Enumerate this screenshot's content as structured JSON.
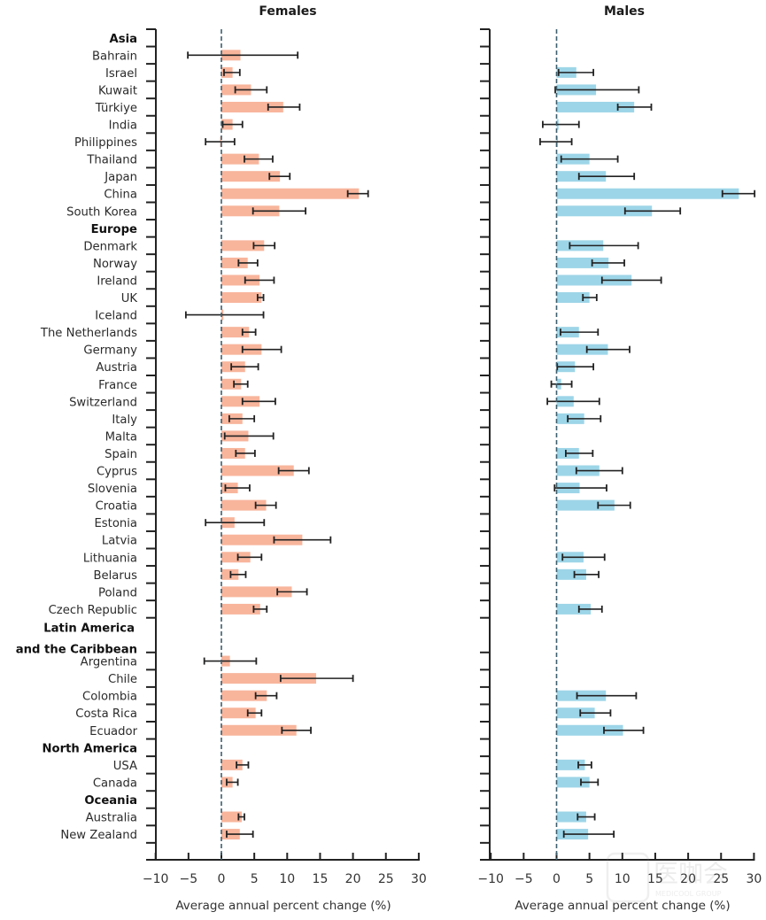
{
  "colors": {
    "females_bar": "#F8B59C",
    "males_bar": "#9DD5E8",
    "error_bar": "#222222",
    "zero_line": "#3E5F6E",
    "axis": "#222222"
  },
  "watermark": {
    "text": "医咖会",
    "subtext": "MEDICOOL GROUP"
  },
  "chart_data": [
    {
      "type": "bar",
      "orientation": "horizontal",
      "title": "Females",
      "xlabel": "Average annual percent change (%)",
      "ylabel": "",
      "xlim": [
        -10,
        30
      ],
      "xticks": [
        "−10",
        "−5",
        "0",
        "5",
        "10",
        "15",
        "20",
        "25",
        "30"
      ],
      "xtick_values": [
        -10,
        -5,
        0,
        5,
        10,
        15,
        20,
        25,
        30
      ],
      "grid": false,
      "reference_line": 0,
      "error_bars": "95% CI",
      "categories": [
        "Asia",
        "Bahrain",
        "Israel",
        "Kuwait",
        "Türkiye",
        "India",
        "Philippines",
        "Thailand",
        "Japan",
        "China",
        "South Korea",
        "Europe",
        "Denmark",
        "Norway",
        "Ireland",
        "UK",
        "Iceland",
        "The Netherlands",
        "Germany",
        "Austria",
        "France",
        "Switzerland",
        "Italy",
        "Malta",
        "Spain",
        "Cyprus",
        "Slovenia",
        "Croatia",
        "Estonia",
        "Latvia",
        "Lithuania",
        "Belarus",
        "Poland",
        "Czech Republic",
        "Latin America and the Caribbean",
        "Argentina",
        "Chile",
        "Colombia",
        "Costa Rica",
        "Ecuador",
        "North America",
        "USA",
        "Canada",
        "Oceania",
        "Australia",
        "New Zealand"
      ],
      "values": [
        null,
        2.9,
        1.7,
        4.5,
        9.4,
        1.7,
        -0.2,
        5.7,
        8.9,
        20.9,
        8.8,
        null,
        6.5,
        4.0,
        5.8,
        6.1,
        0.3,
        4.2,
        6.1,
        3.6,
        3.0,
        5.8,
        3.2,
        4.1,
        3.6,
        11.0,
        2.5,
        6.8,
        2.0,
        12.3,
        4.4,
        2.6,
        10.7,
        5.9,
        null,
        1.3,
        14.4,
        6.9,
        5.2,
        11.4,
        null,
        3.2,
        1.7,
        null,
        3.1,
        2.8
      ],
      "ci_low": [
        null,
        -5.1,
        0.4,
        2.1,
        7.1,
        0.2,
        -2.4,
        3.5,
        7.3,
        19.2,
        4.8,
        null,
        4.9,
        2.6,
        3.6,
        5.5,
        -5.4,
        3.2,
        3.2,
        1.5,
        1.9,
        3.2,
        1.2,
        0.5,
        2.2,
        8.7,
        0.6,
        5.2,
        -2.4,
        8.0,
        2.5,
        1.4,
        8.5,
        4.9,
        null,
        -2.6,
        9.0,
        5.2,
        4.0,
        9.2,
        null,
        2.3,
        0.8,
        null,
        2.6,
        0.8
      ],
      "ci_high": [
        null,
        11.6,
        2.8,
        6.9,
        11.9,
        3.2,
        2.0,
        7.8,
        10.4,
        22.3,
        12.8,
        null,
        8.1,
        5.5,
        8.0,
        6.4,
        6.4,
        5.2,
        9.1,
        5.6,
        4.0,
        8.2,
        5.0,
        7.9,
        5.1,
        13.3,
        4.3,
        8.3,
        6.5,
        16.6,
        6.1,
        3.7,
        13.0,
        6.9,
        null,
        5.3,
        20.0,
        8.4,
        6.1,
        13.6,
        null,
        4.1,
        2.5,
        null,
        3.5,
        4.8
      ]
    },
    {
      "type": "bar",
      "orientation": "horizontal",
      "title": "Males",
      "xlabel": "Average annual percent change (%)",
      "ylabel": "",
      "xlim": [
        -10,
        30
      ],
      "xticks": [
        "−10",
        "−5",
        "0",
        "5",
        "10",
        "15",
        "20",
        "25",
        "30"
      ],
      "xtick_values": [
        -10,
        -5,
        0,
        5,
        10,
        15,
        20,
        25,
        30
      ],
      "grid": false,
      "reference_line": 0,
      "error_bars": "95% CI",
      "categories": [
        "Asia",
        "Bahrain",
        "Israel",
        "Kuwait",
        "Türkiye",
        "India",
        "Philippines",
        "Thailand",
        "Japan",
        "China",
        "South Korea",
        "Europe",
        "Denmark",
        "Norway",
        "Ireland",
        "UK",
        "Iceland",
        "The Netherlands",
        "Germany",
        "Austria",
        "France",
        "Switzerland",
        "Italy",
        "Malta",
        "Spain",
        "Cyprus",
        "Slovenia",
        "Croatia",
        "Estonia",
        "Latvia",
        "Lithuania",
        "Belarus",
        "Poland",
        "Czech Republic",
        "Latin America and the Caribbean",
        "Argentina",
        "Chile",
        "Colombia",
        "Costa Rica",
        "Ecuador",
        "North America",
        "USA",
        "Canada",
        "Oceania",
        "Australia",
        "New Zealand"
      ],
      "values": [
        null,
        null,
        3.0,
        6.0,
        11.8,
        0.3,
        0.0,
        5.0,
        7.5,
        27.7,
        14.5,
        null,
        7.1,
        7.9,
        11.4,
        5.0,
        null,
        3.4,
        7.8,
        2.8,
        0.7,
        2.6,
        4.2,
        null,
        3.4,
        6.5,
        3.5,
        8.8,
        null,
        null,
        4.1,
        4.5,
        null,
        5.2,
        null,
        null,
        null,
        7.5,
        5.8,
        10.1,
        null,
        4.3,
        5.0,
        null,
        4.5,
        4.8
      ],
      "ci_low": [
        null,
        null,
        0.3,
        -0.2,
        9.3,
        -2.1,
        -2.5,
        0.7,
        3.4,
        25.2,
        10.4,
        null,
        2.0,
        5.4,
        6.9,
        4.0,
        null,
        0.6,
        4.6,
        0.1,
        -0.8,
        -1.4,
        1.7,
        null,
        1.4,
        3.0,
        -0.3,
        6.3,
        null,
        null,
        0.9,
        2.7,
        null,
        3.4,
        null,
        null,
        null,
        3.1,
        3.6,
        7.2,
        null,
        3.3,
        3.7,
        null,
        3.2,
        1.1
      ],
      "ci_high": [
        null,
        null,
        5.6,
        12.5,
        14.4,
        3.4,
        2.3,
        9.3,
        11.8,
        30.1,
        18.8,
        null,
        12.4,
        10.3,
        15.9,
        6.1,
        null,
        6.3,
        11.1,
        5.6,
        2.3,
        6.5,
        6.7,
        null,
        5.5,
        10.0,
        7.6,
        11.2,
        null,
        null,
        7.3,
        6.4,
        null,
        6.9,
        null,
        null,
        null,
        12.1,
        8.2,
        13.2,
        null,
        5.3,
        6.3,
        null,
        5.8,
        8.7
      ]
    }
  ],
  "rows": [
    {
      "label": "Asia",
      "header": true
    },
    {
      "label": "Bahrain"
    },
    {
      "label": "Israel"
    },
    {
      "label": "Kuwait"
    },
    {
      "label": "Türkiye"
    },
    {
      "label": "India"
    },
    {
      "label": "Philippines"
    },
    {
      "label": "Thailand"
    },
    {
      "label": "Japan"
    },
    {
      "label": "China"
    },
    {
      "label": "South Korea"
    },
    {
      "label": "Europe",
      "header": true
    },
    {
      "label": "Denmark"
    },
    {
      "label": "Norway"
    },
    {
      "label": "Ireland"
    },
    {
      "label": "UK"
    },
    {
      "label": "Iceland"
    },
    {
      "label": "The Netherlands"
    },
    {
      "label": "Germany"
    },
    {
      "label": "Austria"
    },
    {
      "label": "France"
    },
    {
      "label": "Switzerland"
    },
    {
      "label": "Italy"
    },
    {
      "label": "Malta"
    },
    {
      "label": "Spain"
    },
    {
      "label": "Cyprus"
    },
    {
      "label": "Slovenia"
    },
    {
      "label": "Croatia"
    },
    {
      "label": "Estonia"
    },
    {
      "label": "Latvia"
    },
    {
      "label": "Lithuania"
    },
    {
      "label": "Belarus"
    },
    {
      "label": "Poland"
    },
    {
      "label": "Czech Republic"
    },
    {
      "label": "Latin America",
      "label2": "and the Caribbean",
      "header": true,
      "double": true
    },
    {
      "label": "Argentina"
    },
    {
      "label": "Chile"
    },
    {
      "label": "Colombia"
    },
    {
      "label": "Costa Rica"
    },
    {
      "label": "Ecuador"
    },
    {
      "label": "North America",
      "header": true
    },
    {
      "label": "USA"
    },
    {
      "label": "Canada"
    },
    {
      "label": "Oceania",
      "header": true
    },
    {
      "label": "Australia"
    },
    {
      "label": "New Zealand"
    }
  ]
}
